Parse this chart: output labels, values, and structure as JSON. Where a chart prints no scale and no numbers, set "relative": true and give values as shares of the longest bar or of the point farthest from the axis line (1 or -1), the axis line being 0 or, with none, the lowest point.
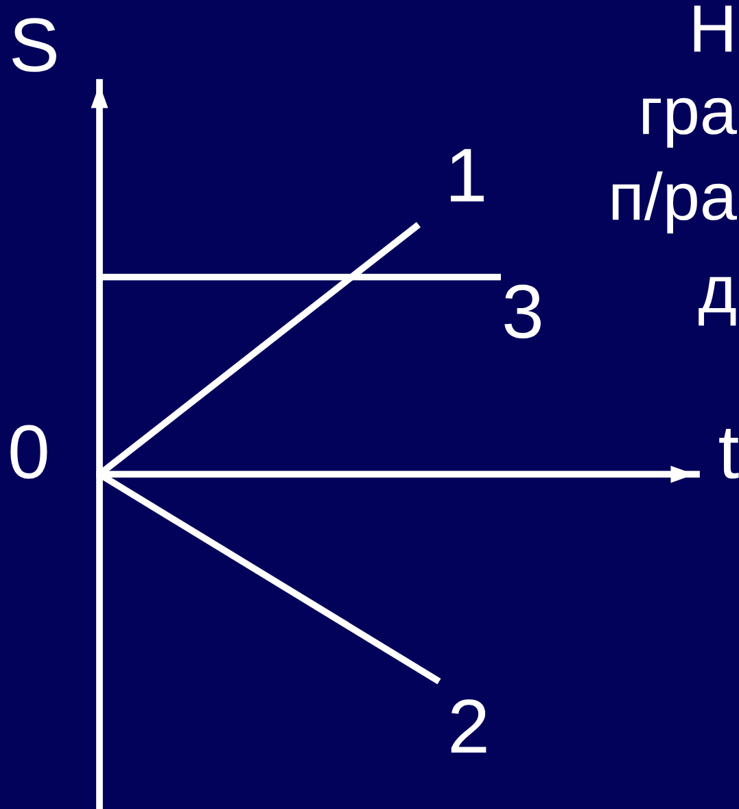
{
  "chart_data": {
    "type": "line",
    "relative": true,
    "xlabel": "t",
    "ylabel": "S",
    "categories": [
      null,
      null,
      null,
      null,
      null,
      null,
      null,
      null,
      null,
      null,
      null,
      null,
      null,
      null,
      null,
      null,
      null,
      null,
      null,
      null,
      null,
      null,
      null,
      null,
      null,
      null,
      null,
      null,
      null,
      null,
      null,
      null,
      null,
      null,
      null,
      null,
      null,
      null,
      null,
      null,
      null,
      null,
      null,
      null,
      null,
      null,
      null,
      null,
      null,
      null,
      null,
      null,
      null,
      null,
      null,
      null,
      null,
      null,
      null
    ],
    "series": [
      {
        "name": "1",
        "color": "#ffffff",
        "values": [
          0,
          null,
          null,
          null,
          null,
          null,
          null,
          null,
          null,
          null,
          null,
          null,
          null,
          null,
          null,
          null,
          null,
          null,
          null,
          null,
          null,
          null,
          null,
          null,
          null,
          null,
          null,
          null,
          null,
          null,
          null,
          1,
          null,
          null,
          null,
          null,
          null,
          null,
          null,
          null,
          null,
          null,
          null,
          null,
          null,
          null,
          null,
          null,
          null,
          null,
          null,
          null,
          null,
          null,
          null,
          null,
          null,
          null,
          null
        ]
      },
      {
        "name": "2",
        "color": "#ffffff",
        "values": [
          0,
          null,
          null,
          null,
          null,
          null,
          null,
          null,
          null,
          null,
          null,
          null,
          null,
          null,
          null,
          null,
          null,
          null,
          null,
          null,
          null,
          null,
          null,
          null,
          null,
          null,
          null,
          null,
          null,
          null,
          null,
          null,
          null,
          -0.83,
          null,
          null,
          null,
          null,
          null,
          null,
          null,
          null,
          null,
          null,
          null,
          null,
          null,
          null,
          null,
          null,
          null,
          null,
          null,
          null,
          null,
          null,
          null,
          null,
          null
        ]
      },
      {
        "name": "3",
        "color": "#ffffff",
        "values": [
          0.79,
          null,
          null,
          null,
          null,
          null,
          null,
          null,
          null,
          null,
          null,
          null,
          null,
          null,
          null,
          null,
          null,
          null,
          null,
          null,
          null,
          null,
          null,
          null,
          null,
          null,
          null,
          null,
          null,
          null,
          null,
          null,
          null,
          null,
          null,
          null,
          null,
          null,
          null,
          0.79,
          null,
          null,
          null,
          null,
          null,
          null,
          null,
          null,
          null,
          null,
          null,
          null,
          null,
          null,
          null,
          null,
          null,
          null,
          null
        ]
      }
    ],
    "annotations": [
      "0",
      "Н",
      "гра",
      "п/ра",
      "д"
    ],
    "marker": "none",
    "line_style": "solid",
    "legend": false
  }
}
